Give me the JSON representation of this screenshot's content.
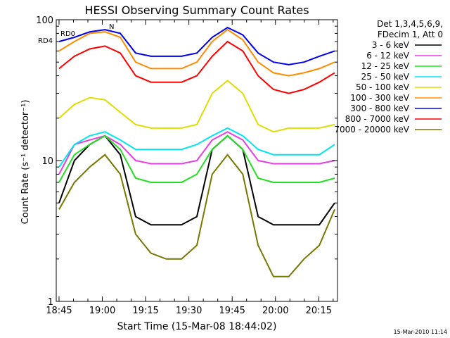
{
  "chart_data": {
    "type": "line",
    "title": "HESSI Observing Summary Count Rates",
    "xlabel": "Start Time (15-Mar-08 18:44:02)",
    "ylabel": "Count Rate (s⁻¹ detector⁻¹)",
    "y_scale": "log",
    "ylim": [
      1,
      100
    ],
    "xlim": [
      "18:44:02",
      "20:21:30"
    ],
    "x_tick_labels": [
      "18:45",
      "19:00",
      "19:15",
      "19:30",
      "19:45",
      "20:00",
      "20:15"
    ],
    "y_tick_labels": [
      "1",
      "10",
      "100"
    ],
    "legend_header": [
      "Det 1,3,4,5,6,9,",
      "FDecim 1, Att 0"
    ],
    "legend_position": "right",
    "footer_timestamp": "15-Mar-2010 11:14",
    "annotations": [
      {
        "text": "RD4",
        "color": "#006600"
      },
      {
        "text": "RD0",
        "color": "#000000"
      },
      {
        "text": "N",
        "color": "#00e5ee"
      }
    ],
    "series": [
      {
        "name": "3 - 6 keV",
        "color": "#000000",
        "values": [
          5.0,
          10,
          13,
          15,
          11,
          4,
          3.5,
          3.5,
          3.5,
          4,
          12,
          15,
          12,
          4,
          3.5,
          3.5,
          3.5,
          3.5,
          5
        ]
      },
      {
        "name": "6 - 12 keV",
        "color": "#e83ce8",
        "values": [
          8,
          13,
          14,
          15,
          13,
          10,
          9.5,
          9.5,
          9.5,
          10,
          14,
          16,
          14,
          10,
          9.5,
          9.5,
          9.5,
          9.5,
          10
        ]
      },
      {
        "name": "12 - 25 keV",
        "color": "#22dd22",
        "values": [
          7,
          11,
          13,
          15,
          12,
          7.5,
          7,
          7,
          7,
          8,
          12,
          15,
          12,
          7.5,
          7,
          7,
          7,
          7,
          7.5
        ]
      },
      {
        "name": "25 - 50 keV",
        "color": "#00e5ee",
        "values": [
          9,
          13,
          15,
          16,
          14,
          12,
          12,
          12,
          12,
          13,
          15,
          17,
          15,
          12,
          11,
          11,
          11,
          11,
          13
        ]
      },
      {
        "name": "50 - 100 keV",
        "color": "#dddd00",
        "values": [
          20,
          25,
          28,
          27,
          22,
          18,
          17,
          17,
          17,
          18,
          30,
          37,
          30,
          18,
          16,
          17,
          17,
          17,
          18
        ]
      },
      {
        "name": "100 - 300 keV",
        "color": "#ff8c00",
        "values": [
          60,
          70,
          80,
          82,
          75,
          50,
          45,
          45,
          45,
          50,
          70,
          85,
          72,
          50,
          42,
          40,
          42,
          45,
          50
        ]
      },
      {
        "name": "300 - 800 keV",
        "color": "#0000ee",
        "values": [
          70,
          75,
          82,
          85,
          80,
          58,
          55,
          55,
          55,
          58,
          75,
          88,
          78,
          58,
          50,
          48,
          50,
          55,
          60
        ]
      },
      {
        "name": "800 - 7000 keV",
        "color": "#ff0000",
        "values": [
          45,
          55,
          62,
          65,
          58,
          40,
          36,
          36,
          36,
          40,
          55,
          70,
          60,
          40,
          32,
          30,
          32,
          36,
          42
        ]
      },
      {
        "name": "7000 - 20000 keV",
        "color": "#777700",
        "values": [
          4.5,
          7,
          9,
          11,
          8,
          3,
          2.2,
          2.0,
          2.0,
          2.5,
          8,
          11,
          8,
          2.5,
          1.5,
          1.5,
          2.0,
          2.5,
          4.5
        ]
      }
    ]
  }
}
